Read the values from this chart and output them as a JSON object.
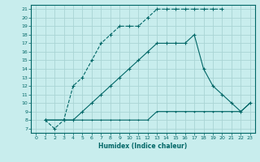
{
  "xlabel": "Humidex (Indice chaleur)",
  "bg_color": "#c8eded",
  "line_color": "#006666",
  "grid_color": "#aad4d4",
  "xlim": [
    -0.5,
    23.5
  ],
  "ylim": [
    6.5,
    21.5
  ],
  "xticks": [
    0,
    1,
    2,
    3,
    4,
    5,
    6,
    7,
    8,
    9,
    10,
    11,
    12,
    13,
    14,
    15,
    16,
    17,
    18,
    19,
    20,
    21,
    22,
    23
  ],
  "yticks": [
    7,
    8,
    9,
    10,
    11,
    12,
    13,
    14,
    15,
    16,
    17,
    18,
    19,
    20,
    21
  ],
  "curve1_x": [
    1,
    2,
    3,
    4,
    5,
    6,
    7,
    8,
    9,
    10,
    11,
    12,
    13,
    14,
    15,
    16,
    17,
    18,
    19,
    20
  ],
  "curve1_y": [
    8,
    7,
    8,
    12,
    13,
    15,
    17,
    18,
    19,
    19,
    19,
    20,
    21,
    21,
    21,
    21,
    21,
    21,
    21,
    21
  ],
  "curve2_x": [
    1,
    3,
    4,
    5,
    6,
    7,
    8,
    9,
    10,
    11,
    12,
    13,
    14,
    15,
    16,
    17,
    18,
    19,
    20,
    21,
    22,
    23
  ],
  "curve2_y": [
    8,
    8,
    8,
    8,
    8,
    8,
    8,
    8,
    8,
    8,
    8,
    9,
    9,
    9,
    9,
    9,
    9,
    9,
    9,
    9,
    9,
    10
  ],
  "curve3_x": [
    1,
    3,
    4,
    5,
    6,
    7,
    8,
    9,
    10,
    11,
    12,
    13,
    14,
    15,
    16,
    17,
    18,
    19,
    20,
    21,
    22,
    23
  ],
  "curve3_y": [
    8,
    8,
    8,
    9,
    10,
    11,
    12,
    13,
    14,
    15,
    16,
    17,
    17,
    17,
    17,
    18,
    14,
    12,
    11,
    10,
    9,
    10
  ]
}
